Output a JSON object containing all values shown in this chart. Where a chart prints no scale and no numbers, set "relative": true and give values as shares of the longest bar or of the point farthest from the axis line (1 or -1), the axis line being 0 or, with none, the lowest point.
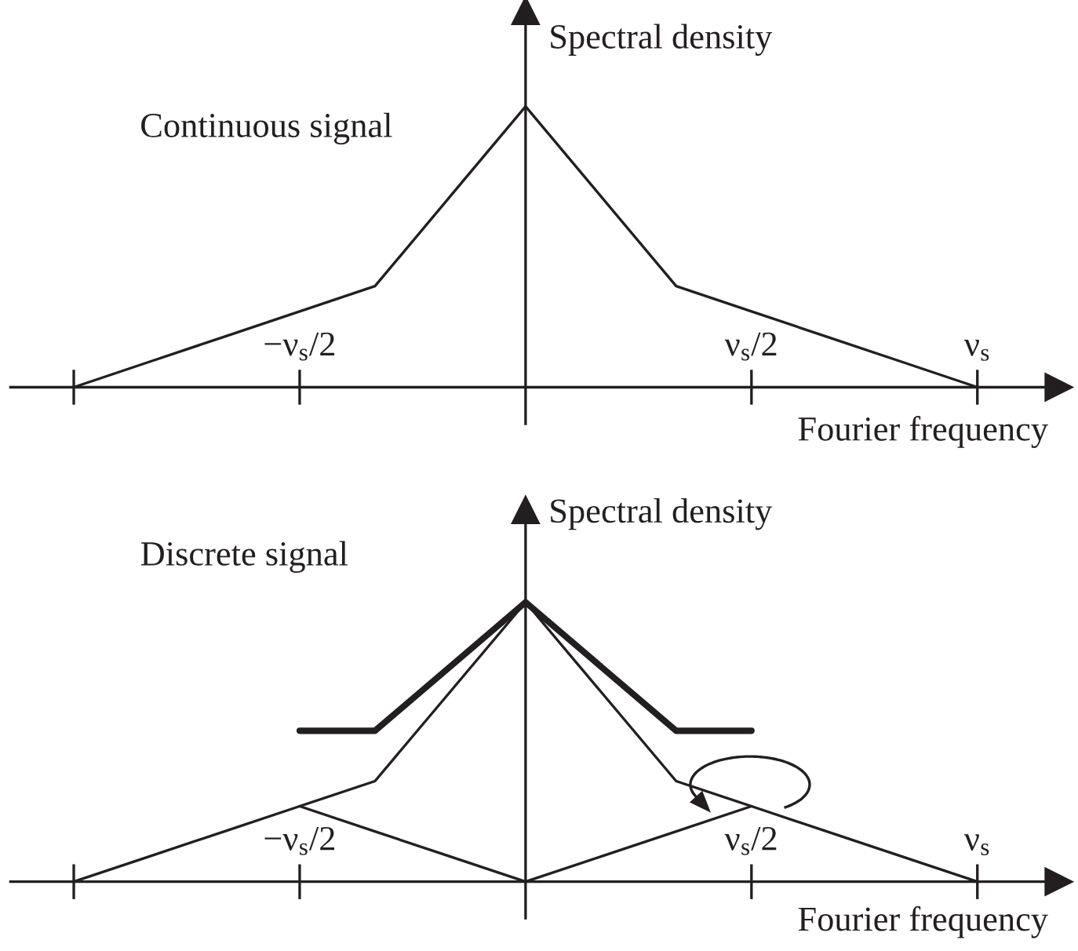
{
  "chart_data": [
    {
      "type": "line",
      "title": "Continuous signal",
      "xlabel": "Fourier frequency",
      "ylabel": "Spectral density",
      "relative": true,
      "tick_labels": "x",
      "categories": [
        null,
        null,
        null,
        "−ν$_{s}$/2",
        null,
        null,
        null,
        null,
        null,
        "ν$_{s}$/2",
        null,
        null,
        "ν$_{s}$"
      ],
      "series": [
        {
          "color": "#231f20",
          "values": [
            0,
            0.09,
            0.18,
            0.27,
            0.36,
            0.68,
            1,
            0.68,
            0.36,
            0.27,
            0.18,
            0.09,
            0
          ]
        }
      ]
    },
    {
      "type": "line",
      "title": "Discrete signal",
      "xlabel": "Fourier frequency",
      "ylabel": "Spectral density",
      "relative": true,
      "tick_labels": "x",
      "categories": [
        null,
        null,
        null,
        "−ν$_{s}$/2",
        null,
        null,
        null,
        null,
        null,
        "ν$_{s}$/2",
        null,
        null,
        "ν$_{s}$"
      ],
      "series": [
        {
          "color": "#231f20",
          "values": [
            0,
            0.09,
            0.18,
            0.27,
            0.36,
            0.68,
            1,
            0.68,
            0.36,
            0.27,
            0.18,
            0.09,
            0
          ]
        },
        {
          "color": "#231f20",
          "values": [
            null,
            null,
            null,
            0.27,
            0.18,
            0.09,
            0,
            0.09,
            0.18,
            0.27,
            null,
            null,
            null
          ]
        },
        {
          "color": "#231f20",
          "values": [
            null,
            null,
            null,
            0.54,
            0.54,
            0.77,
            1,
            0.77,
            0.54,
            0.54,
            null,
            null,
            null
          ]
        }
      ]
    }
  ]
}
